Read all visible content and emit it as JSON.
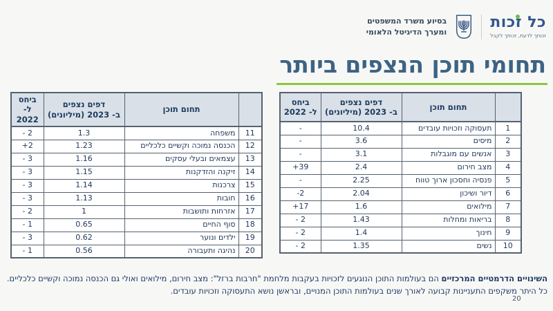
{
  "header": {
    "logo": {
      "title": "כל זכות",
      "tagline": "זכותך לדעת, זכותך לקבל"
    },
    "ministry": {
      "line1": "בסיוע משרד המשפטים",
      "line2": "ומערך הדיגיטל הלאומי"
    }
  },
  "title": "תחומי תוכן הנצפים ביותר",
  "tables": {
    "columns": {
      "rank": "",
      "topic": "תחום תוכן",
      "pages_line1": "דפים נצפים",
      "pages_line2": "ב- 2023 (מיליונים)",
      "vs_line1": "ביחס",
      "vs_line2": "ל- 2022"
    },
    "right": {
      "rows": [
        {
          "rank": "1",
          "topic": "תעסוקה וזכויות עובדים",
          "pages": "10.4",
          "vs": "-"
        },
        {
          "rank": "2",
          "topic": "מיסים",
          "pages": "3.6",
          "vs": "-"
        },
        {
          "rank": "3",
          "topic": "אנשים עם מוגבלות",
          "pages": "3.1",
          "vs": "-"
        },
        {
          "rank": "4",
          "topic": "מצב חירום",
          "pages": "2.4",
          "vs": "+39"
        },
        {
          "rank": "5",
          "topic": "פנסיה וחסכון ארוך טווח",
          "pages": "2.25",
          "vs": "-"
        },
        {
          "rank": "6",
          "topic": "דיור ושיכון",
          "pages": "2.04",
          "vs": "-2"
        },
        {
          "rank": "7",
          "topic": "מילואים",
          "pages": "1.6",
          "vs": "+17"
        },
        {
          "rank": "8",
          "topic": "בריאות ומחלות",
          "pages": "1.43",
          "vs": "- 2"
        },
        {
          "rank": "9",
          "topic": "חינוך",
          "pages": "1.4",
          "vs": "- 2"
        },
        {
          "rank": "10",
          "topic": "נשים",
          "pages": "1.35",
          "vs": "- 2"
        }
      ]
    },
    "left": {
      "rows": [
        {
          "rank": "11",
          "topic": "משפחה",
          "pages": "1.3",
          "vs": "- 2"
        },
        {
          "rank": "12",
          "topic": "הכנסה נמוכה וקשיים כלכליים",
          "pages": "1.23",
          "vs": "+2"
        },
        {
          "rank": "13",
          "topic": "עצמאים ובעלי עסקים",
          "pages": "1.16",
          "vs": "- 3"
        },
        {
          "rank": "14",
          "topic": "זיקנה והזדקנות",
          "pages": "1.15",
          "vs": "- 3"
        },
        {
          "rank": "15",
          "topic": "צרכנות",
          "pages": "1.14",
          "vs": "- 3"
        },
        {
          "rank": "16",
          "topic": "חובות",
          "pages": "1.13",
          "vs": "- 3"
        },
        {
          "rank": "17",
          "topic": "אזרחות ותושבות",
          "pages": "1",
          "vs": "- 2"
        },
        {
          "rank": "18",
          "topic": "סוף החיים",
          "pages": "0.65",
          "vs": "- 1"
        },
        {
          "rank": "19",
          "topic": "ילדים ונוער",
          "pages": "0.62",
          "vs": "- 3"
        },
        {
          "rank": "20",
          "topic": "נהיגה ותעבורה",
          "pages": "0.56",
          "vs": "- 1"
        }
      ]
    }
  },
  "footer": {
    "line1_bold": "השינויים הדרמטיים המרכזיים",
    "line1_rest": " הם בעולמות התוכן הנוגעים לזכויות בעקבות מלחמת \"חרבות ברזל\": מצב חירום, מילואים ואולי גם הכנסה נמוכה וקשיים כלכליים.",
    "line2": "כל היתר משקפים התעניינות קבועה לאורך שנים בעולמות התוכן המנויים, ובראשן נושא התעסוקה וזכויות עובדים.",
    "page_number": "20"
  },
  "colors": {
    "title_blue": "#3d6384",
    "underline_green": "#8cc63e",
    "table_border": "#55616f",
    "table_header_bg": "#d9e0e8",
    "text_navy": "#22395c",
    "footer_navy": "#1f3864",
    "logo_blue": "#33568e",
    "logo_green": "#6abf4b"
  }
}
